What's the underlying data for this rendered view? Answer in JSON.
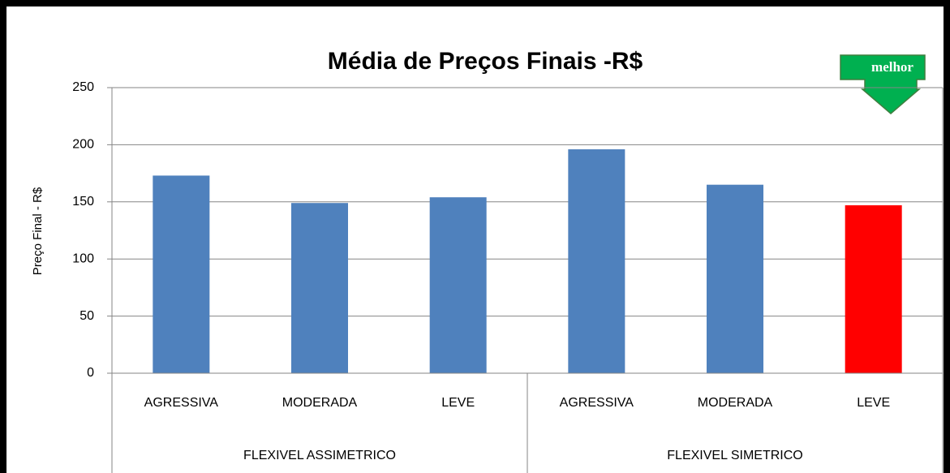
{
  "chart_data": {
    "type": "bar",
    "title": "Média de Preços Finais -R$",
    "y_label": "Preço Final - R$",
    "annotation": "melhor",
    "groups": [
      {
        "name": "FLEXIVEL ASSIMETRICO",
        "categories": [
          "AGRESSIVA",
          "MODERADA",
          "LEVE"
        ],
        "values": [
          173,
          149,
          154
        ],
        "colors": [
          "#4f81bd",
          "#4f81bd",
          "#4f81bd"
        ]
      },
      {
        "name": "FLEXIVEL SIMETRICO",
        "categories": [
          "AGRESSIVA",
          "MODERADA",
          "LEVE"
        ],
        "values": [
          196,
          165,
          147
        ],
        "colors": [
          "#4f81bd",
          "#4f81bd",
          "#ff0000"
        ]
      }
    ],
    "ylim": [
      0,
      250
    ],
    "yticks": [
      0,
      50,
      100,
      150,
      200,
      250
    ],
    "grid": true
  }
}
